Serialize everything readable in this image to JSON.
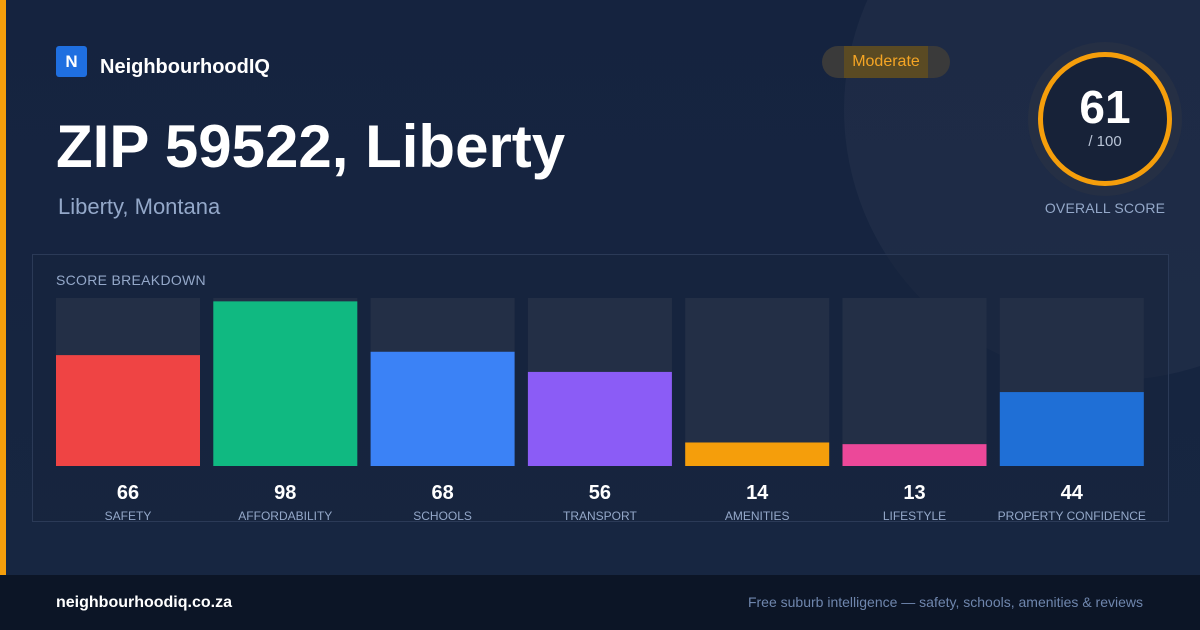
{
  "brand": {
    "logo_letter": "N",
    "name": "NeighbourhoodIQ",
    "brand_color": "#1f6fe0"
  },
  "badge": {
    "label": "Moderate",
    "color": "#f59e0b"
  },
  "header": {
    "title": "ZIP 59522, Liberty",
    "subtitle": "Liberty, Montana"
  },
  "overall": {
    "value": "61",
    "max": "/ 100",
    "label": "OVERALL SCORE",
    "ring_color": "#f59e0b"
  },
  "breakdown": {
    "label": "SCORE BREAKDOWN"
  },
  "chart_data": {
    "type": "bar",
    "title": "SCORE BREAKDOWN",
    "categories": [
      "SAFETY",
      "AFFORDABILITY",
      "SCHOOLS",
      "TRANSPORT",
      "AMENITIES",
      "LIFESTYLE",
      "PROPERTY CONFIDENCE"
    ],
    "values": [
      66,
      98,
      68,
      56,
      14,
      13,
      44
    ],
    "colors": [
      "#ef4444",
      "#10b981",
      "#3b82f6",
      "#8b5cf6",
      "#f59e0b",
      "#ec4899",
      "#1f6fd6"
    ],
    "ylim": [
      0,
      100
    ],
    "grid": false
  },
  "footer": {
    "url": "neighbourhoodiq.co.za",
    "tagline": "Free suburb intelligence — safety, schools, amenities & reviews"
  }
}
